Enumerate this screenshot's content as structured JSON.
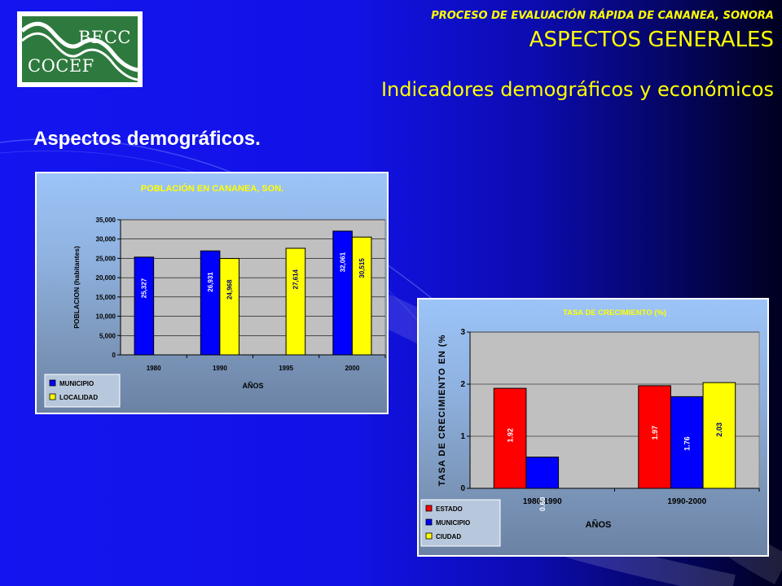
{
  "slide": {
    "process_title": "PROCESO DE EVALUACIÓN RÁPIDA DE CANANEA, SONORA",
    "title": "ASPECTOS GENERALES",
    "subtitle": "Indicadores demográficos y económicos",
    "section_heading": "Aspectos demográficos.",
    "logo": {
      "top_text": "BECC",
      "bottom_text": "COCEF",
      "color": "#2e7a3e"
    },
    "colors": {
      "heading_yellow": "#ffff00",
      "background_blue": "#1414f0"
    }
  },
  "chart_data": [
    {
      "type": "bar",
      "title": "POBLACIÓN EN CANANEA, SON.",
      "xlabel": "AÑOS",
      "ylabel": "POBLACION (habitantes)",
      "categories": [
        "1980",
        "1990",
        "1995",
        "2000"
      ],
      "ylim": [
        0,
        35000
      ],
      "yticks": [
        "0",
        "5,000",
        "10,000",
        "15,000",
        "20,000",
        "25,000",
        "30,000",
        "35,000"
      ],
      "grid": true,
      "legend_position": "bottom-left",
      "series": [
        {
          "name": "MUNICIPIO",
          "color": "#0000ff",
          "values": [
            25327,
            26931,
            null,
            32061
          ],
          "labels": [
            "25,327",
            "26,931",
            "",
            "32,061"
          ]
        },
        {
          "name": "LOCALIDAD",
          "color": "#ffff00",
          "values": [
            null,
            24968,
            27614,
            30515
          ],
          "labels": [
            "",
            "24,968",
            "27,614",
            "30,515"
          ]
        }
      ]
    },
    {
      "type": "bar",
      "title": "TASA DE CRECIMIENTO (%)",
      "xlabel": "AÑOS",
      "ylabel": "TASA DE CRECIMIENTO EN (%",
      "categories": [
        "1980-1990",
        "1990-2000"
      ],
      "ylim": [
        0,
        3
      ],
      "yticks": [
        "0",
        "1",
        "2",
        "3"
      ],
      "grid": true,
      "legend_position": "bottom-left",
      "series": [
        {
          "name": "ESTADO",
          "color": "#ff0000",
          "values": [
            1.92,
            1.97
          ],
          "labels": [
            "1.92",
            "1.97"
          ]
        },
        {
          "name": "MUNICIPIO",
          "color": "#0000ff",
          "values": [
            0.6,
            1.76
          ],
          "labels": [
            "0.60",
            "1.76"
          ]
        },
        {
          "name": "CIUDAD",
          "color": "#ffff00",
          "values": [
            null,
            2.03
          ],
          "labels": [
            "",
            "2.03"
          ]
        }
      ]
    }
  ]
}
